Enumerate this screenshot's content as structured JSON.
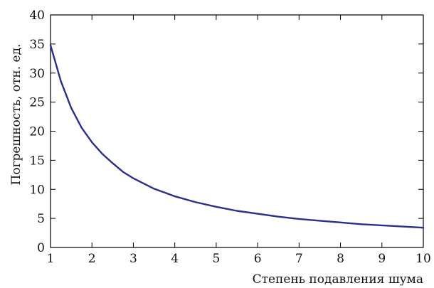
{
  "chart_data": {
    "type": "line",
    "title": "",
    "xlabel": "Степень подавления шума",
    "ylabel": "Погрешность, отн. ед.",
    "xlim": [
      1,
      10
    ],
    "ylim": [
      0,
      40
    ],
    "xticks": [
      1,
      2,
      3,
      4,
      5,
      6,
      7,
      8,
      9,
      10
    ],
    "yticks": [
      0,
      5,
      10,
      15,
      20,
      25,
      30,
      35,
      40
    ],
    "grid": false,
    "legend": "none",
    "series": [
      {
        "color": "#2b2f8c",
        "x": [
          1,
          1.25,
          1.5,
          1.75,
          2,
          2.25,
          2.5,
          2.75,
          3,
          3.5,
          4,
          4.5,
          5,
          5.5,
          6,
          6.5,
          7,
          7.5,
          8,
          8.5,
          9,
          9.5,
          10
        ],
        "y": [
          34.8,
          28.6,
          24.0,
          20.6,
          18.1,
          16.1,
          14.5,
          13.0,
          11.9,
          10.1,
          8.8,
          7.8,
          7.0,
          6.3,
          5.8,
          5.3,
          4.9,
          4.6,
          4.3,
          4.0,
          3.8,
          3.6,
          3.4
        ]
      }
    ]
  }
}
